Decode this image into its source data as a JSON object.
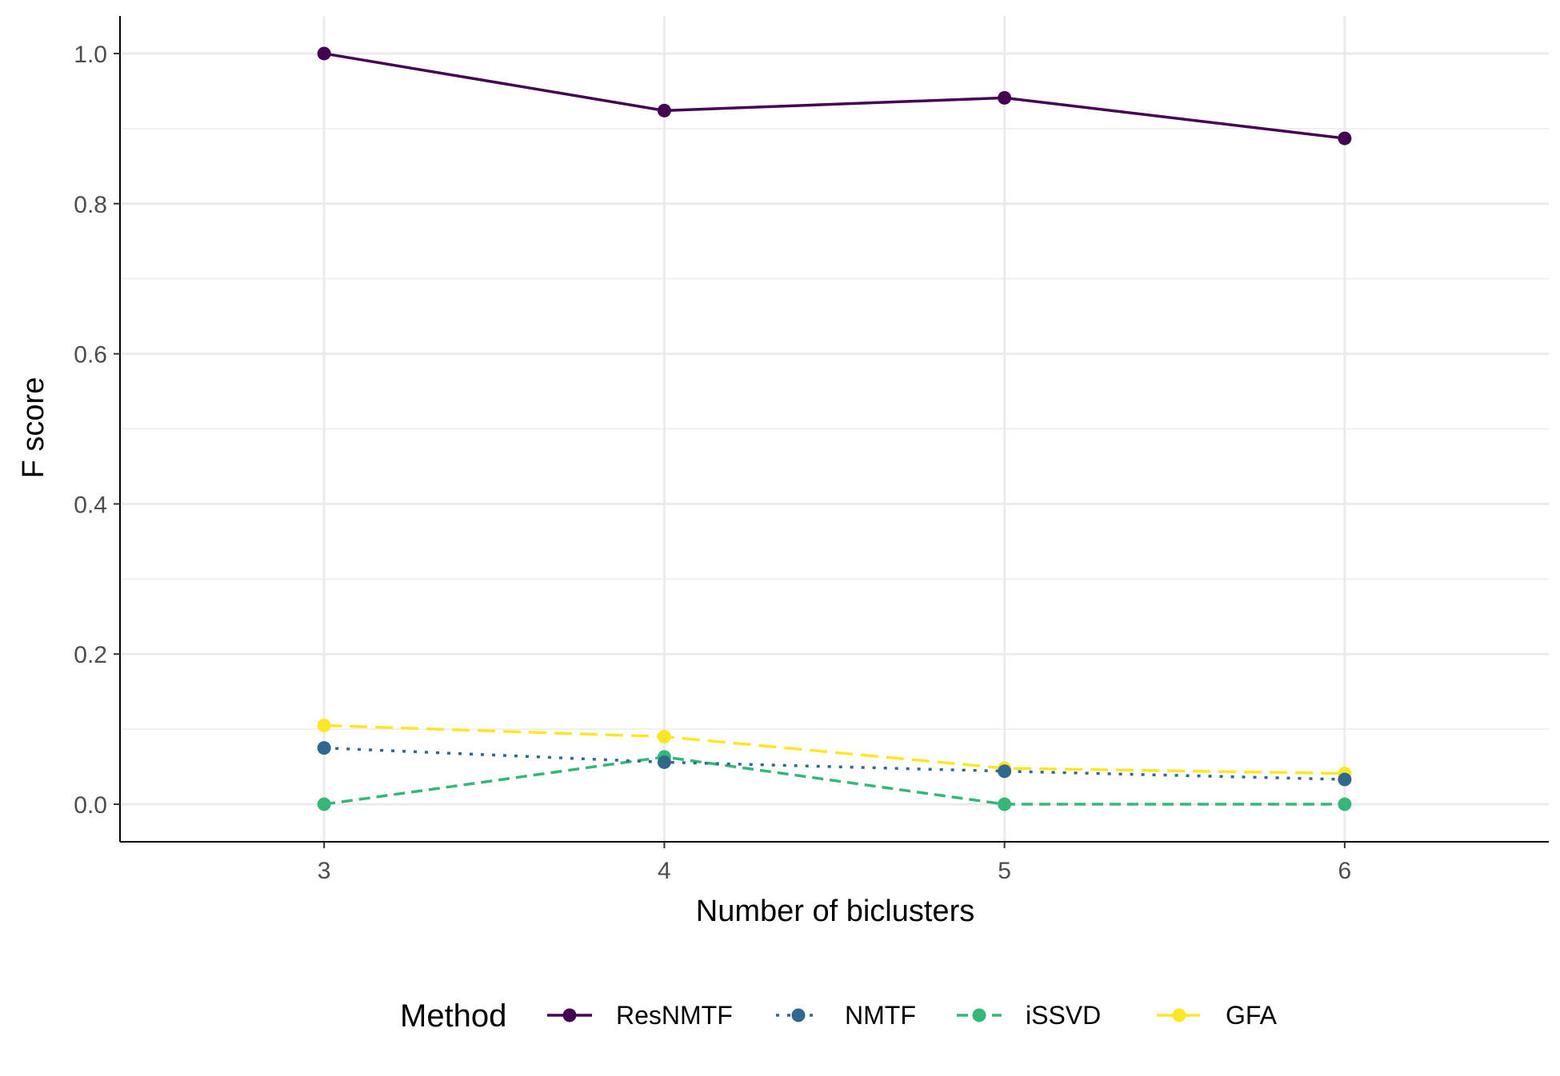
{
  "chart_data": {
    "type": "line",
    "title": "",
    "xlabel": "Number of biclusters",
    "ylabel": "F score",
    "x": [
      3,
      4,
      5,
      6
    ],
    "x_tick_labels": [
      "3",
      "4",
      "5",
      "6"
    ],
    "y_tick_labels": [
      "0.0",
      "0.2",
      "0.4",
      "0.6",
      "0.8",
      "1.0"
    ],
    "y_ticks": [
      0.0,
      0.2,
      0.4,
      0.6,
      0.8,
      1.0
    ],
    "xlim": [
      2.4,
      6.6
    ],
    "ylim": [
      -0.05,
      1.05
    ],
    "grid": true,
    "legend": {
      "title": "Method",
      "placement": "bottom"
    },
    "series": [
      {
        "name": "ResNMTF",
        "values": [
          1.0,
          0.924,
          0.941,
          0.887
        ],
        "color": "#440154",
        "dash": "solid"
      },
      {
        "name": "NMTF",
        "values": [
          0.075,
          0.056,
          0.044,
          0.033
        ],
        "color": "#31688e",
        "dash": "dotted"
      },
      {
        "name": "iSSVD",
        "values": [
          0.0,
          0.063,
          0.0,
          0.0
        ],
        "color": "#35b779",
        "dash": "dashed"
      },
      {
        "name": "GFA",
        "values": [
          0.105,
          0.09,
          0.048,
          0.041
        ],
        "color": "#fde725",
        "dash": "longdash"
      }
    ]
  }
}
